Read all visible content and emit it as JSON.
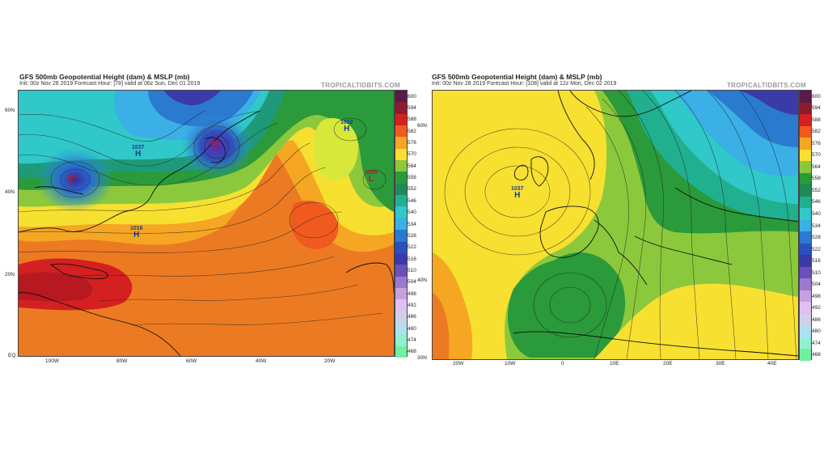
{
  "left_panel": {
    "title": "GFS 500mb Geopotential Height (dam) & MSLP (mb)",
    "subtitle": "Init: 00z Nov 28 2019   Forecast Hour: [78]   valid at 06z Sun, Dec 01 2019",
    "brand": "TROPICALTIDBITS.COM",
    "lat_labels": [
      "60N",
      "40N",
      "20N",
      "EQ"
    ],
    "lon_labels": [
      "100W",
      "80W",
      "60W",
      "40W",
      "20W"
    ],
    "pressure_centers": [
      {
        "label": "H",
        "value": "1032",
        "color": "#1a3a8c"
      },
      {
        "label": "H",
        "value": "1037",
        "color": "#1a3a8c"
      },
      {
        "label": "L",
        "value": "988",
        "color": "#c0182b"
      },
      {
        "label": "L",
        "value": "985",
        "color": "#c0182b"
      },
      {
        "label": "L",
        "value": "1008",
        "color": "#c0182b"
      },
      {
        "label": "H",
        "value": "1016",
        "color": "#1a3a8c"
      }
    ]
  },
  "right_panel": {
    "title": "GFS 500mb Geopotential Height (dam) & MSLP (mb)",
    "subtitle": "Init: 00z Nov 28 2019   Forecast Hour: [108]   valid at 12z Mon, Dec 02 2019",
    "brand": "TROPICALTIDBITS.COM",
    "lat_labels": [
      "60N",
      "40N",
      "30N"
    ],
    "lon_labels": [
      "20W",
      "10W",
      "0",
      "10E",
      "20E",
      "30E",
      "40E"
    ],
    "pressure_centers": [
      {
        "label": "H",
        "value": "1037",
        "color": "#1a3a8c"
      }
    ]
  },
  "colorbar": {
    "labels": [
      "600",
      "594",
      "588",
      "582",
      "576",
      "570",
      "564",
      "558",
      "552",
      "546",
      "540",
      "534",
      "528",
      "522",
      "516",
      "510",
      "504",
      "498",
      "492",
      "486",
      "480",
      "474",
      "468"
    ],
    "colors": [
      "#5a1a4a",
      "#8b1c2e",
      "#d42020",
      "#f05a1e",
      "#f5a623",
      "#f7e030",
      "#8cc83c",
      "#2a9a3a",
      "#1e8a5a",
      "#20b090",
      "#30c8c8",
      "#3ab0e6",
      "#2a7ad0",
      "#2a50c0",
      "#3a3aa8",
      "#6a50b8",
      "#9a7ad0",
      "#c8a0e0",
      "#e0c0f0",
      "#d0d0e8",
      "#b0e0f0",
      "#90f0d0",
      "#70f0a0"
    ]
  }
}
